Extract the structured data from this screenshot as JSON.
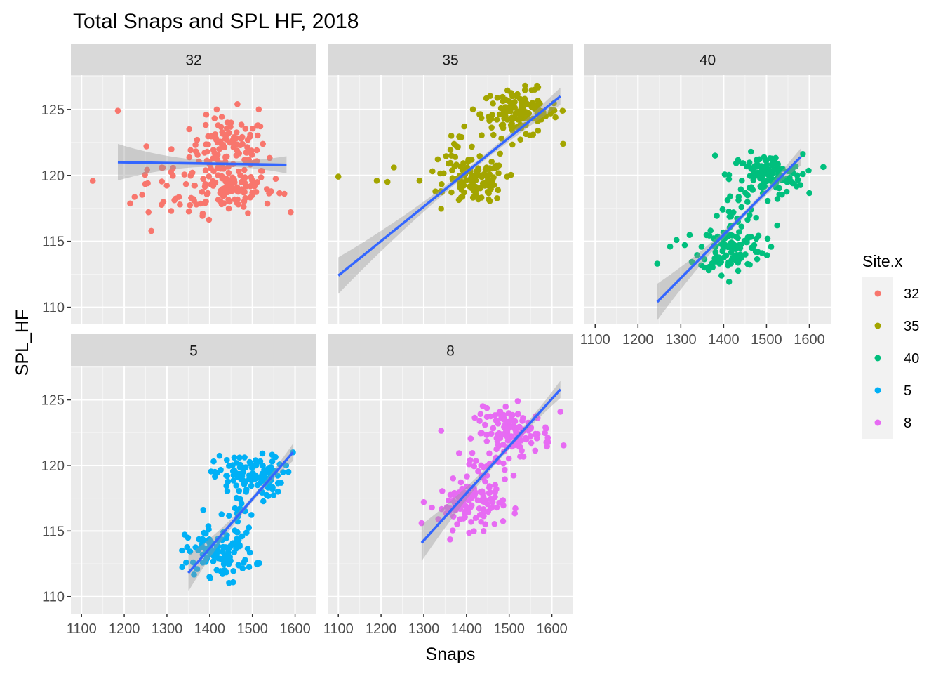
{
  "chart_data": {
    "type": "scatter",
    "title": "Total Snaps and SPL HF, 2018",
    "xlabel": "Snaps",
    "ylabel": "SPL_HF",
    "xlim": [
      1075,
      1650
    ],
    "ylim": [
      108.7,
      127.6
    ],
    "x_ticks": [
      1100,
      1200,
      1300,
      1400,
      1500,
      1600
    ],
    "y_ticks": [
      110,
      115,
      120,
      125
    ],
    "legend": {
      "title": "Site.x",
      "placement": "right",
      "entries": [
        "32",
        "35",
        "40",
        "5",
        "8"
      ]
    },
    "facets": [
      {
        "label": "32",
        "color": "#F8766D",
        "smooth": {
          "x": [
            1185,
            1580
          ],
          "y": [
            121.0,
            120.8
          ]
        },
        "clusters": [
          {
            "cx": 1445,
            "cy": 122.0,
            "sx": 45,
            "sy": 1.2,
            "n": 110
          },
          {
            "cx": 1440,
            "cy": 119.0,
            "sx": 55,
            "sy": 0.9,
            "n": 110
          },
          {
            "cx": 1300,
            "cy": 119.2,
            "sx": 60,
            "sy": 1.6,
            "n": 25
          }
        ],
        "points": [
          [
            1185,
            124.9
          ],
          [
            1252,
            122.2
          ],
          [
            1255,
            119.4
          ],
          [
            1310,
            117.3
          ],
          [
            1515,
            125.0
          ],
          [
            1575,
            118.6
          ],
          [
            1465,
            125.4
          ]
        ]
      },
      {
        "label": "35",
        "color": "#A3A500",
        "smooth": {
          "x": [
            1100,
            1620
          ],
          "y": [
            112.4,
            126.0
          ]
        },
        "clusters": [
          {
            "cx": 1525,
            "cy": 124.7,
            "sx": 45,
            "sy": 0.9,
            "n": 130
          },
          {
            "cx": 1420,
            "cy": 119.5,
            "sx": 35,
            "sy": 0.8,
            "n": 110
          },
          {
            "cx": 1380,
            "cy": 121.8,
            "sx": 25,
            "sy": 0.8,
            "n": 20
          }
        ],
        "points": [
          [
            1100,
            119.9
          ],
          [
            1230,
            120.6
          ],
          [
            1215,
            119.5
          ],
          [
            1290,
            119.6
          ],
          [
            1340,
            118.8
          ],
          [
            1495,
            119.9
          ],
          [
            1415,
            125.0
          ],
          [
            1560,
            126.5
          ],
          [
            1625,
            124.9
          ],
          [
            1190,
            119.6
          ]
        ]
      },
      {
        "label": "40",
        "color": "#00BF7D",
        "smooth": {
          "x": [
            1245,
            1580
          ],
          "y": [
            110.4,
            121.4
          ]
        },
        "clusters": [
          {
            "cx": 1500,
            "cy": 120.0,
            "sx": 42,
            "sy": 0.8,
            "n": 120
          },
          {
            "cx": 1420,
            "cy": 114.5,
            "sx": 38,
            "sy": 0.9,
            "n": 110
          },
          {
            "cx": 1420,
            "cy": 117.5,
            "sx": 35,
            "sy": 0.9,
            "n": 20
          }
        ],
        "points": [
          [
            1245,
            113.3
          ],
          [
            1290,
            115.1
          ],
          [
            1380,
            121.5
          ],
          [
            1585,
            120.1
          ],
          [
            1395,
            112.4
          ],
          [
            1525,
            116.2
          ],
          [
            1275,
            114.6
          ]
        ]
      },
      {
        "label": "5",
        "color": "#00B0F6",
        "smooth": {
          "x": [
            1350,
            1595
          ],
          "y": [
            111.8,
            121.0
          ]
        },
        "clusters": [
          {
            "cx": 1490,
            "cy": 119.2,
            "sx": 40,
            "sy": 0.8,
            "n": 110
          },
          {
            "cx": 1425,
            "cy": 113.4,
            "sx": 40,
            "sy": 0.9,
            "n": 110
          },
          {
            "cx": 1460,
            "cy": 116.3,
            "sx": 25,
            "sy": 0.8,
            "n": 15
          }
        ],
        "points": [
          [
            1595,
            121.0
          ],
          [
            1345,
            112.6
          ],
          [
            1455,
            111.1
          ],
          [
            1470,
            120.6
          ],
          [
            1560,
            118.0
          ]
        ]
      },
      {
        "label": "8",
        "color": "#E76BF3",
        "smooth": {
          "x": [
            1295,
            1620
          ],
          "y": [
            114.1,
            125.8
          ]
        },
        "clusters": [
          {
            "cx": 1510,
            "cy": 122.5,
            "sx": 45,
            "sy": 0.9,
            "n": 120
          },
          {
            "cx": 1410,
            "cy": 117.0,
            "sx": 38,
            "sy": 0.9,
            "n": 110
          },
          {
            "cx": 1440,
            "cy": 119.5,
            "sx": 30,
            "sy": 0.8,
            "n": 20
          }
        ],
        "points": [
          [
            1295,
            115.6
          ],
          [
            1300,
            117.2
          ],
          [
            1620,
            124.1
          ],
          [
            1440,
            115.0
          ],
          [
            1590,
            121.9
          ],
          [
            1520,
            124.9
          ]
        ]
      }
    ]
  },
  "colors": {
    "panel_bg": "#EBEBEB",
    "strip_bg": "#D9D9D9",
    "grid_major": "#FFFFFF",
    "smooth_line": "#3366FF",
    "smooth_band": "#999999",
    "text": "#4D4D4D"
  }
}
